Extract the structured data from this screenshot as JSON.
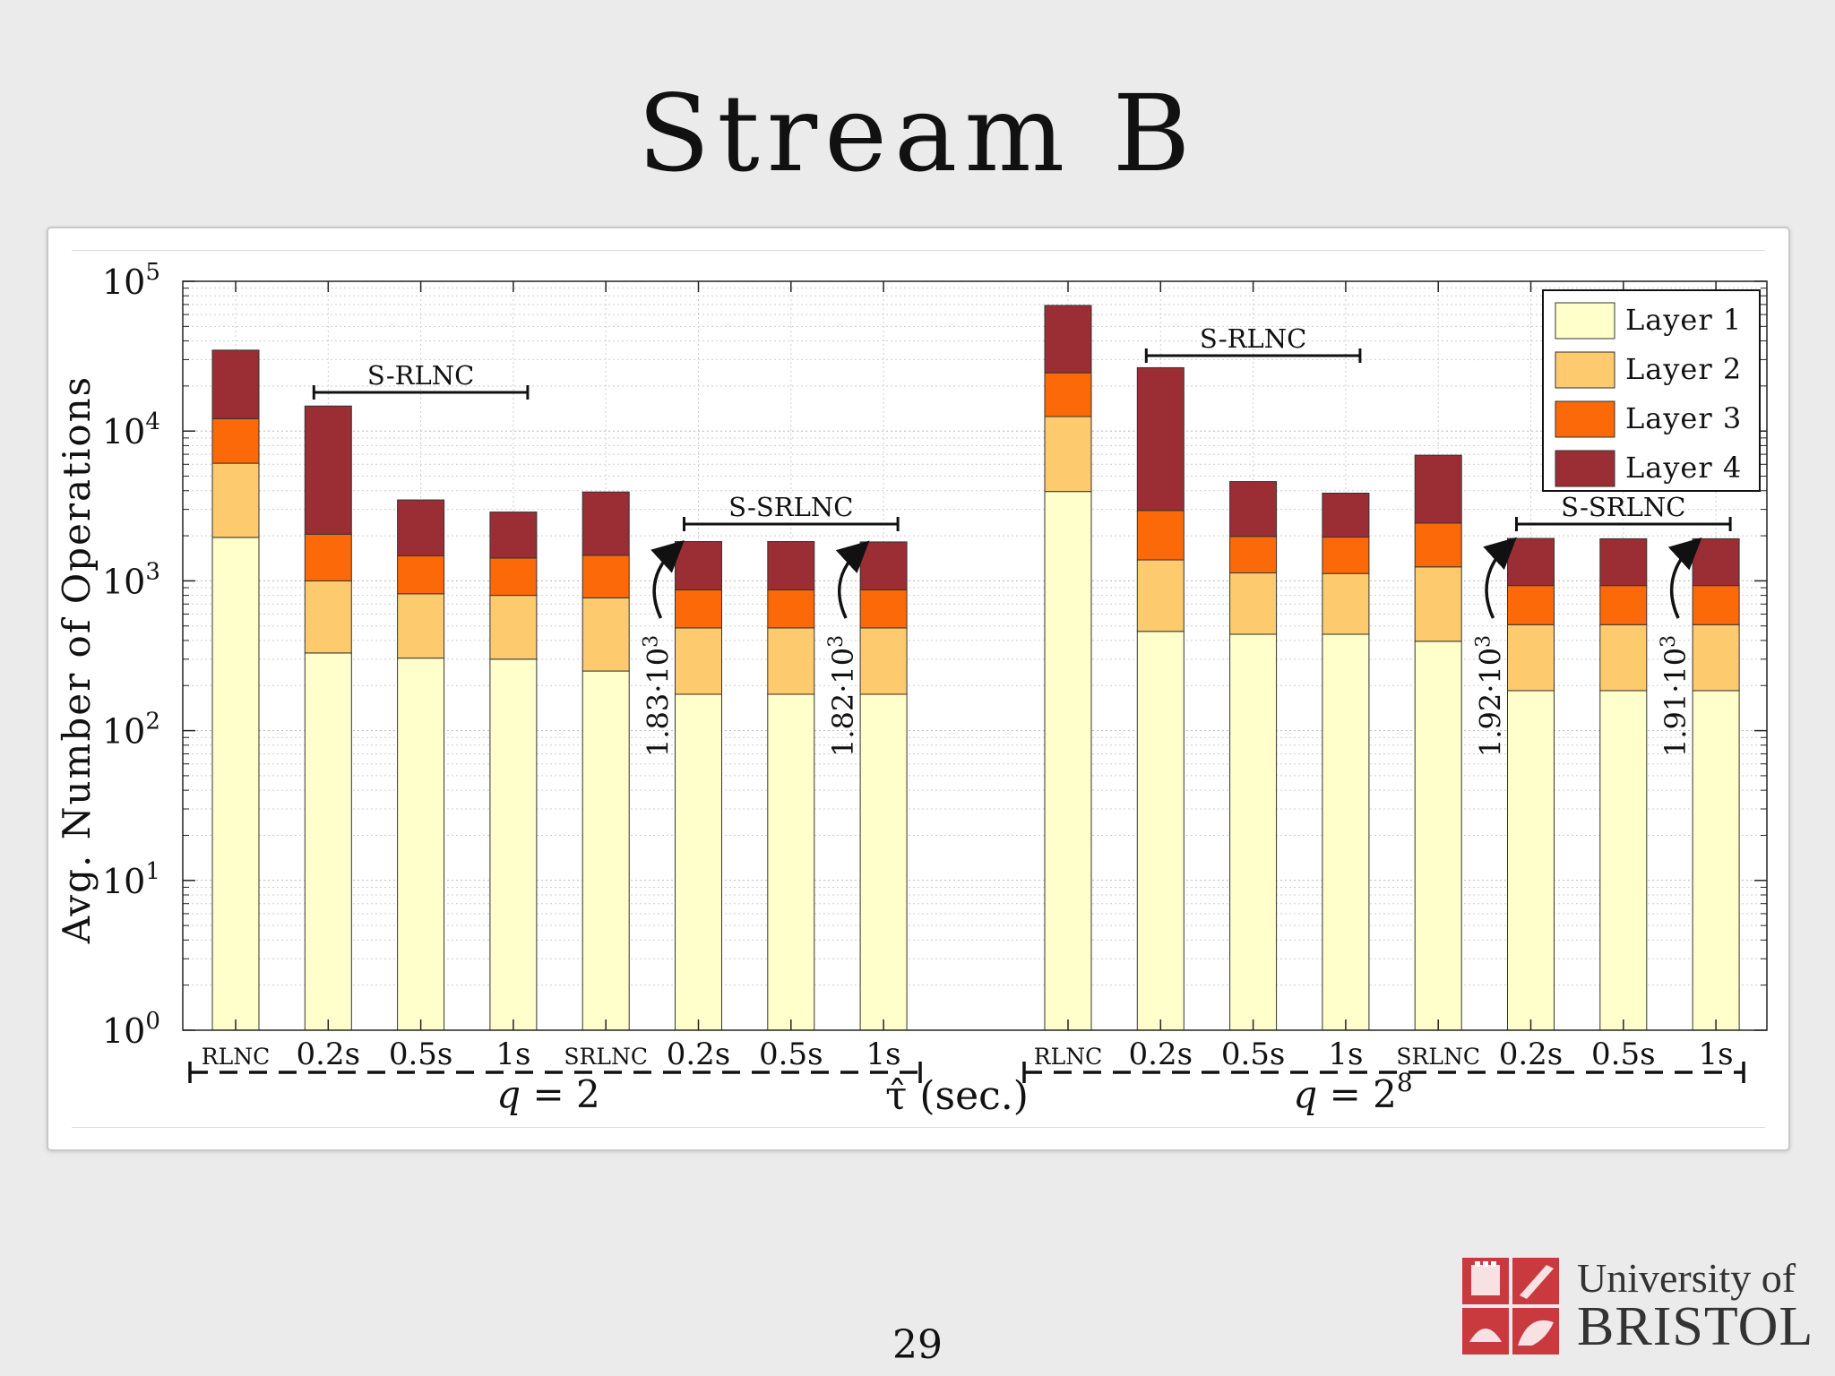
{
  "slide": {
    "title": "Stream B",
    "page_number": "29"
  },
  "logo": {
    "line1": "University of",
    "line2": "BRISTOL"
  },
  "colors": {
    "layer1": "#ffffcc",
    "layer2": "#fdca6e",
    "layer3": "#fc6908",
    "layer4": "#9b2e34"
  },
  "chart_data": {
    "type": "bar",
    "stacked": true,
    "ylabel": "Avg. Number of Operations",
    "xlabel": "τ̂ (sec.)",
    "yscale": "log",
    "ylim": [
      1,
      100000
    ],
    "yticks": [
      {
        "base": "10",
        "exp": "0"
      },
      {
        "base": "10",
        "exp": "1"
      },
      {
        "base": "10",
        "exp": "2"
      },
      {
        "base": "10",
        "exp": "3"
      },
      {
        "base": "10",
        "exp": "4"
      },
      {
        "base": "10",
        "exp": "5"
      }
    ],
    "grid": true,
    "legend_position": "top-right",
    "series_names": [
      "Layer 1",
      "Layer 2",
      "Layer 3",
      "Layer 4"
    ],
    "groups": [
      {
        "label": "q = 2",
        "label_base": "q = 2",
        "label_sup": "",
        "bars": [
          {
            "label": "RLNC",
            "small": true,
            "cumulative": [
              1950,
              6100,
              12100,
              34700
            ]
          },
          {
            "label": "0.2s",
            "small": false,
            "cumulative": [
              330,
              1000,
              2050,
              14700
            ]
          },
          {
            "label": "0.5s",
            "small": false,
            "cumulative": [
              305,
              820,
              1470,
              3470
            ]
          },
          {
            "label": "1s",
            "small": false,
            "cumulative": [
              300,
              800,
              1420,
              2880
            ]
          },
          {
            "label": "SRLNC",
            "small": true,
            "cumulative": [
              250,
              770,
              1480,
              3920
            ]
          },
          {
            "label": "0.2s",
            "small": false,
            "cumulative": [
              175,
              485,
              870,
              1830
            ]
          },
          {
            "label": "0.5s",
            "small": false,
            "cumulative": [
              175,
              485,
              870,
              1830
            ]
          },
          {
            "label": "1s",
            "small": false,
            "cumulative": [
              175,
              485,
              870,
              1820
            ]
          }
        ],
        "brackets": [
          {
            "label": "S-RLNC",
            "from": 1,
            "to": 3
          },
          {
            "label": "S-SRLNC",
            "from": 5,
            "to": 7
          }
        ],
        "annotations": [
          {
            "bar": 5,
            "mantissa": "1.83·10",
            "exp": "3"
          },
          {
            "bar": 7,
            "mantissa": "1.82·10",
            "exp": "3"
          }
        ]
      },
      {
        "label": "q = 2^8",
        "label_base": "q = 2",
        "label_sup": "8",
        "bars": [
          {
            "label": "RLNC",
            "small": true,
            "cumulative": [
              3950,
              12500,
              24500,
              69000
            ]
          },
          {
            "label": "0.2s",
            "small": false,
            "cumulative": [
              460,
              1380,
              2950,
              26500
            ]
          },
          {
            "label": "0.5s",
            "small": false,
            "cumulative": [
              440,
              1130,
              1980,
              4600
            ]
          },
          {
            "label": "1s",
            "small": false,
            "cumulative": [
              440,
              1120,
              1960,
              3850
            ]
          },
          {
            "label": "SRLNC",
            "small": true,
            "cumulative": [
              395,
              1240,
              2430,
              6900
            ]
          },
          {
            "label": "0.2s",
            "small": false,
            "cumulative": [
              185,
              510,
              930,
              1920
            ]
          },
          {
            "label": "0.5s",
            "small": false,
            "cumulative": [
              185,
              510,
              930,
              1910
            ]
          },
          {
            "label": "1s",
            "small": false,
            "cumulative": [
              185,
              510,
              930,
              1910
            ]
          }
        ],
        "brackets": [
          {
            "label": "S-RLNC",
            "from": 1,
            "to": 3
          },
          {
            "label": "S-SRLNC",
            "from": 5,
            "to": 7
          }
        ],
        "annotations": [
          {
            "bar": 5,
            "mantissa": "1.92·10",
            "exp": "3"
          },
          {
            "bar": 7,
            "mantissa": "1.91·10",
            "exp": "3"
          }
        ]
      }
    ]
  }
}
